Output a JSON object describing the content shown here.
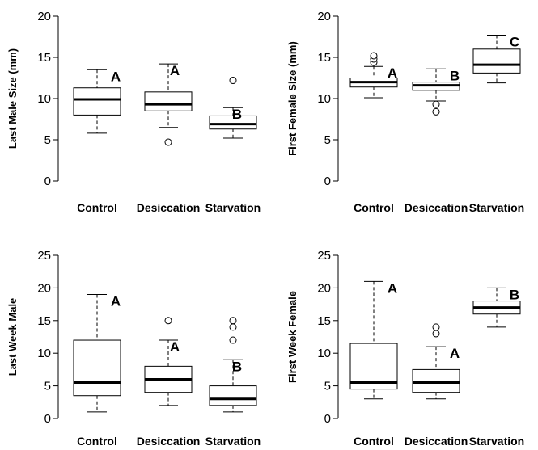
{
  "chart_data": [
    {
      "type": "boxplot",
      "ylabel": "Last Male Size (mm)",
      "categories": [
        "Control",
        "Desiccation",
        "Starvation"
      ],
      "ylim": [
        0,
        20
      ],
      "yticks": [
        0,
        5,
        10,
        15,
        20
      ],
      "boxes": [
        {
          "category": "Control",
          "whisker_low": 5.8,
          "q1": 8.0,
          "median": 9.9,
          "q3": 11.3,
          "whisker_high": 13.5,
          "outliers": [],
          "letter": "A"
        },
        {
          "category": "Desiccation",
          "whisker_low": 6.5,
          "q1": 8.5,
          "median": 9.3,
          "q3": 10.8,
          "whisker_high": 14.2,
          "outliers": [
            4.7
          ],
          "letter": "A"
        },
        {
          "category": "Starvation",
          "whisker_low": 5.2,
          "q1": 6.3,
          "median": 6.9,
          "q3": 7.9,
          "whisker_high": 8.9,
          "outliers": [
            12.2
          ],
          "letter": "B"
        }
      ]
    },
    {
      "type": "boxplot",
      "ylabel": "First Female Size (mm)",
      "categories": [
        "Control",
        "Desiccation",
        "Starvation"
      ],
      "ylim": [
        0,
        20
      ],
      "yticks": [
        0,
        5,
        10,
        15,
        20
      ],
      "boxes": [
        {
          "category": "Control",
          "whisker_low": 10.1,
          "q1": 11.4,
          "median": 12.0,
          "q3": 12.5,
          "whisker_high": 13.9,
          "outliers": [
            14.4,
            14.8,
            15.2
          ],
          "letter": "A"
        },
        {
          "category": "Desiccation",
          "whisker_low": 9.7,
          "q1": 11.0,
          "median": 11.6,
          "q3": 12.0,
          "whisker_high": 13.6,
          "outliers": [
            9.3,
            8.4
          ],
          "letter": "B"
        },
        {
          "category": "Starvation",
          "whisker_low": 11.9,
          "q1": 13.1,
          "median": 14.1,
          "q3": 16.0,
          "whisker_high": 17.7,
          "outliers": [],
          "letter": "C"
        }
      ]
    },
    {
      "type": "boxplot",
      "ylabel": "Last Week Male",
      "categories": [
        "Control",
        "Desiccation",
        "Starvation"
      ],
      "ylim": [
        0,
        25
      ],
      "yticks": [
        0,
        5,
        10,
        15,
        20,
        25
      ],
      "boxes": [
        {
          "category": "Control",
          "whisker_low": 1,
          "q1": 3.5,
          "median": 5.5,
          "q3": 12,
          "whisker_high": 19,
          "outliers": [],
          "letter": "A"
        },
        {
          "category": "Desiccation",
          "whisker_low": 2,
          "q1": 4,
          "median": 6,
          "q3": 8,
          "whisker_high": 12,
          "outliers": [
            15
          ],
          "letter": "A"
        },
        {
          "category": "Starvation",
          "whisker_low": 1,
          "q1": 2,
          "median": 3,
          "q3": 5,
          "whisker_high": 9,
          "outliers": [
            12,
            14,
            15
          ],
          "letter": "B"
        }
      ]
    },
    {
      "type": "boxplot",
      "ylabel": "First Week Female",
      "categories": [
        "Control",
        "Desiccation",
        "Starvation"
      ],
      "ylim": [
        0,
        25
      ],
      "yticks": [
        0,
        5,
        10,
        15,
        20,
        25
      ],
      "boxes": [
        {
          "category": "Control",
          "whisker_low": 3,
          "q1": 4.5,
          "median": 5.5,
          "q3": 11.5,
          "whisker_high": 21,
          "outliers": [],
          "letter": "A"
        },
        {
          "category": "Desiccation",
          "whisker_low": 3,
          "q1": 4,
          "median": 5.5,
          "q3": 7.5,
          "whisker_high": 11,
          "outliers": [
            13,
            14
          ],
          "letter": "A"
        },
        {
          "category": "Starvation",
          "whisker_low": 14,
          "q1": 16,
          "median": 17,
          "q3": 18,
          "whisker_high": 20,
          "outliers": [],
          "letter": "B"
        }
      ]
    }
  ]
}
